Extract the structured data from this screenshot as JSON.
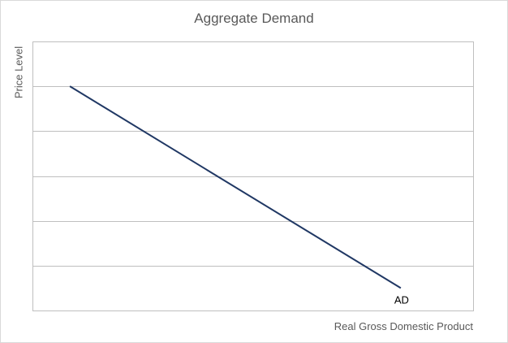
{
  "chart_data": {
    "type": "line",
    "title": "Aggregate Demand",
    "xlabel": "Real Gross Domestic Product",
    "ylabel": "Price Level",
    "x_ticks_visible": false,
    "y_ticks_visible": false,
    "xlim": [
      0,
      10
    ],
    "ylim": [
      0,
      6
    ],
    "grid": "horizontal",
    "legend": "none",
    "series": [
      {
        "name": "AD",
        "color": "#203864",
        "x": [
          0.83,
          8.34
        ],
        "y": [
          5.0,
          0.5
        ]
      }
    ]
  }
}
